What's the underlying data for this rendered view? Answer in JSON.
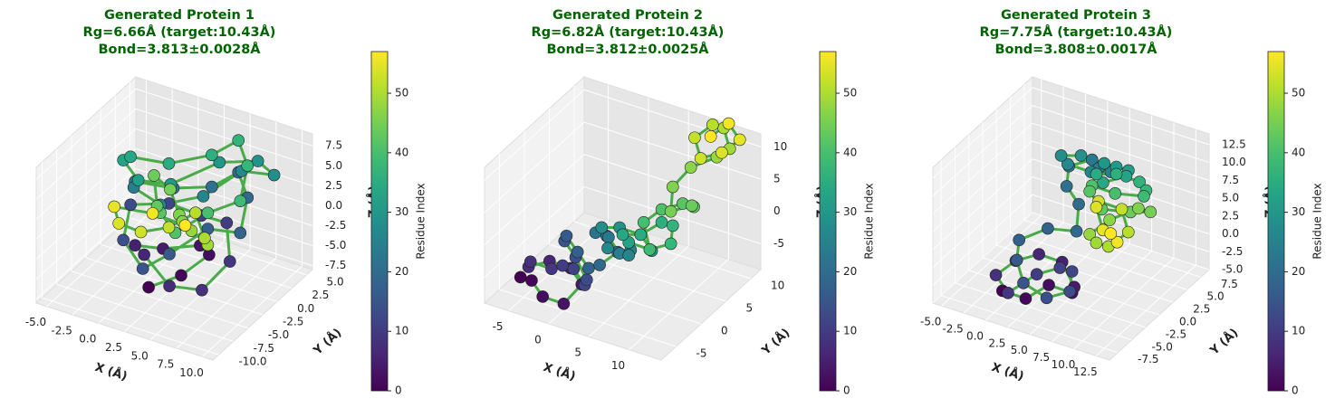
{
  "chart_data": [
    {
      "type": "scatter3d",
      "title": [
        "Generated Protein 1",
        "Rg=6.66Å (target:10.43Å)",
        "Bond=3.813±0.0028Å"
      ],
      "title_color": "#006400",
      "xlabel": "X (Å)",
      "ylabel": "Y (Å)",
      "zlabel": "Z (Å)",
      "xlim": [
        -6,
        11
      ],
      "ylim": [
        -11,
        6
      ],
      "zlim": [
        -8,
        9
      ],
      "xticks": [
        {
          "value": -5,
          "label": "-5.0"
        },
        -2.5,
        {
          "value": 0,
          "label": "0.0"
        },
        2.5,
        {
          "value": 5,
          "label": "5.0"
        },
        7.5,
        {
          "value": 10,
          "label": "10.0"
        }
      ],
      "yticks": [
        {
          "value": -10,
          "label": "-10.0"
        },
        -7.5,
        {
          "value": -5,
          "label": "-5.0"
        },
        -2.5,
        {
          "value": 0,
          "label": "0.0"
        },
        2.5,
        {
          "value": 5,
          "label": "5.0"
        }
      ],
      "zticks": [
        -7.5,
        {
          "value": -5,
          "label": "-5.0"
        },
        -2.5,
        {
          "value": 0,
          "label": "0.0"
        },
        2.5,
        {
          "value": 5,
          "label": "5.0"
        },
        7.5
      ],
      "x": [
        2,
        4,
        5,
        3,
        0,
        -1,
        1,
        4,
        6,
        7,
        5,
        2,
        0,
        -2,
        -1,
        2,
        4,
        6,
        8,
        7,
        5,
        3,
        1,
        -1,
        0,
        2,
        5,
        7,
        9,
        8,
        6,
        3,
        1,
        -1,
        -2,
        0,
        3,
        5,
        7,
        8,
        6,
        4,
        2,
        0,
        -2,
        -1,
        1,
        3,
        5,
        6,
        4,
        2,
        0,
        -1,
        -2,
        -3,
        -1,
        1
      ],
      "y": [
        -6,
        -4,
        -1,
        1,
        0,
        -3,
        -5,
        -6,
        -4,
        -1,
        2,
        3,
        1,
        -2,
        -5,
        -7,
        -6,
        -3,
        -1,
        2,
        4,
        3,
        0,
        -3,
        -5,
        -4,
        -2,
        1,
        3,
        2,
        -1,
        -4,
        -6,
        -5,
        -2,
        1,
        3,
        4,
        2,
        -1,
        -3,
        -5,
        -4,
        -1,
        2,
        3,
        1,
        -2,
        -4,
        -3,
        0,
        2,
        1,
        -2,
        -4,
        -3,
        0,
        2
      ],
      "z": [
        -6,
        -5,
        -4,
        -5,
        -6,
        -4,
        -3,
        -5,
        -6,
        -4,
        -2,
        -3,
        -1,
        0,
        -2,
        -3,
        -1,
        1,
        0,
        2,
        3,
        1,
        2,
        4,
        5,
        3,
        4,
        6,
        5,
        7,
        8,
        6,
        7,
        8,
        6,
        4,
        5,
        7,
        6,
        4,
        3,
        1,
        2,
        0,
        1,
        -1,
        -2,
        0,
        1,
        -1,
        -3,
        -2,
        -4,
        -3,
        -1,
        0,
        -2,
        -4
      ],
      "line_color": "#2ca02c",
      "colorbar": {
        "label": "Residue Index",
        "cmap": "viridis",
        "lim": [
          0,
          57
        ],
        "ticks": [
          0,
          10,
          20,
          30,
          40,
          50
        ]
      }
    },
    {
      "type": "scatter3d",
      "title": [
        "Generated Protein 2",
        "Rg=6.82Å (target:10.43Å)",
        "Bond=3.812±0.0025Å"
      ],
      "title_color": "#006400",
      "xlabel": "X (Å)",
      "ylabel": "Y (Å)",
      "zlabel": "Z (Å)",
      "xlim": [
        -8,
        14
      ],
      "ylim": [
        -8,
        12
      ],
      "zlim": [
        -9,
        12
      ],
      "xticks": [
        -5,
        0,
        5,
        10
      ],
      "yticks": [
        -5,
        0,
        5,
        10
      ],
      "zticks": [
        -5,
        0,
        5,
        10
      ],
      "x": [
        -6,
        -4,
        -2,
        0,
        1,
        -1,
        -3,
        -5,
        -6,
        -4,
        -2,
        0,
        2,
        1,
        -1,
        -3,
        -4,
        -2,
        0,
        2,
        3,
        1,
        -1,
        0,
        2,
        4,
        5,
        3,
        1,
        2,
        4,
        6,
        7,
        5,
        3,
        4,
        6,
        8,
        9,
        7,
        5,
        6,
        8,
        10,
        11,
        9,
        8,
        9,
        11,
        12,
        10,
        8,
        7,
        9,
        11,
        12,
        10,
        9
      ],
      "y": [
        -4,
        -5,
        -6,
        -5,
        -3,
        -2,
        -3,
        -4,
        -2,
        -1,
        -2,
        -3,
        -4,
        -2,
        -1,
        0,
        2,
        1,
        0,
        -1,
        1,
        2,
        3,
        4,
        3,
        2,
        0,
        -1,
        1,
        3,
        4,
        3,
        1,
        0,
        2,
        4,
        5,
        4,
        2,
        1,
        3,
        5,
        6,
        5,
        3,
        2,
        4,
        6,
        8,
        9,
        11,
        12,
        10,
        8,
        9,
        11,
        12,
        10
      ],
      "z": [
        -7,
        -6,
        -7,
        -8,
        -6,
        -5,
        -4,
        -5,
        -6,
        -7,
        -5,
        -4,
        -5,
        -6,
        -4,
        -3,
        -4,
        -5,
        -6,
        -4,
        -3,
        -2,
        -3,
        -4,
        -5,
        -3,
        -2,
        -1,
        0,
        -1,
        -2,
        -3,
        -1,
        0,
        -1,
        -2,
        0,
        1,
        0,
        -1,
        1,
        2,
        3,
        4,
        6,
        5,
        7,
        9,
        10,
        11,
        12,
        11,
        10,
        9,
        10,
        11,
        12,
        11
      ],
      "line_color": "#2ca02c",
      "colorbar": {
        "label": "Residue Index",
        "cmap": "viridis",
        "lim": [
          0,
          57
        ],
        "ticks": [
          0,
          10,
          20,
          30,
          40,
          50
        ]
      }
    },
    {
      "type": "scatter3d",
      "title": [
        "Generated Protein 3",
        "Rg=7.75Å (target:10.43Å)",
        "Bond=3.808±0.0017Å"
      ],
      "title_color": "#006400",
      "xlabel": "X (Å)",
      "ylabel": "Y (Å)",
      "zlabel": "Z (Å)",
      "xlim": [
        -6,
        14
      ],
      "ylim": [
        -9,
        9
      ],
      "zlim": [
        -5,
        14
      ],
      "xticks": [
        {
          "value": -5,
          "label": "-5.0"
        },
        -2.5,
        {
          "value": 0,
          "label": "0.0"
        },
        2.5,
        {
          "value": 5,
          "label": "5.0"
        },
        7.5,
        {
          "value": 10,
          "label": "10.0"
        },
        12.5
      ],
      "yticks": [
        -7.5,
        {
          "value": -5,
          "label": "-5.0"
        },
        -2.5,
        {
          "value": 0,
          "label": "0.0"
        },
        2.5,
        {
          "value": 5,
          "label": "5.0"
        },
        7.5
      ],
      "zticks": [
        {
          "value": -5,
          "label": "-5.0"
        },
        -2.5,
        {
          "value": 0,
          "label": "0.0"
        },
        2.5,
        {
          "value": 5,
          "label": "5.0"
        },
        7.5,
        {
          "value": 10,
          "label": "10.0"
        },
        12.5
      ],
      "x": [
        0,
        2,
        4,
        6,
        5,
        3,
        1,
        -1,
        -2,
        0,
        2,
        4,
        6,
        7,
        5,
        3,
        1,
        0,
        2,
        4,
        3,
        1,
        0,
        2,
        4,
        6,
        5,
        3,
        1,
        2,
        4,
        6,
        8,
        9,
        7,
        5,
        6,
        8,
        10,
        11,
        9,
        7,
        8,
        10,
        12,
        13,
        11,
        9,
        8,
        10,
        12,
        13,
        11,
        9,
        10,
        12,
        13,
        11
      ],
      "y": [
        -6,
        -5,
        -4,
        -3,
        -1,
        0,
        -1,
        -2,
        -4,
        -5,
        -3,
        -2,
        -3,
        -5,
        -6,
        -7,
        -5,
        -3,
        -1,
        1,
        3,
        4,
        6,
        7,
        5,
        4,
        2,
        1,
        3,
        5,
        6,
        5,
        4,
        2,
        1,
        3,
        5,
        6,
        4,
        2,
        0,
        -1,
        -3,
        -4,
        -2,
        0,
        1,
        -1,
        -3,
        -5,
        -6,
        -4,
        -2,
        -3,
        -5,
        -7,
        -6,
        -4
      ],
      "z": [
        -3,
        -4,
        -2,
        -3,
        -4,
        -2,
        -1,
        -2,
        -3,
        -4,
        -2,
        -1,
        0,
        -1,
        -2,
        0,
        1,
        2,
        3,
        2,
        4,
        5,
        6,
        7,
        8,
        9,
        10,
        11,
        10,
        9,
        8,
        9,
        10,
        11,
        10,
        9,
        8,
        7,
        8,
        9,
        10,
        11,
        12,
        11,
        10,
        9,
        8,
        7,
        6,
        7,
        8,
        9,
        10,
        11,
        12,
        11,
        9,
        8
      ],
      "line_color": "#2ca02c",
      "colorbar": {
        "label": "Residue Index",
        "cmap": "viridis",
        "lim": [
          0,
          57
        ],
        "ticks": [
          0,
          10,
          20,
          30,
          40,
          50
        ]
      }
    }
  ]
}
